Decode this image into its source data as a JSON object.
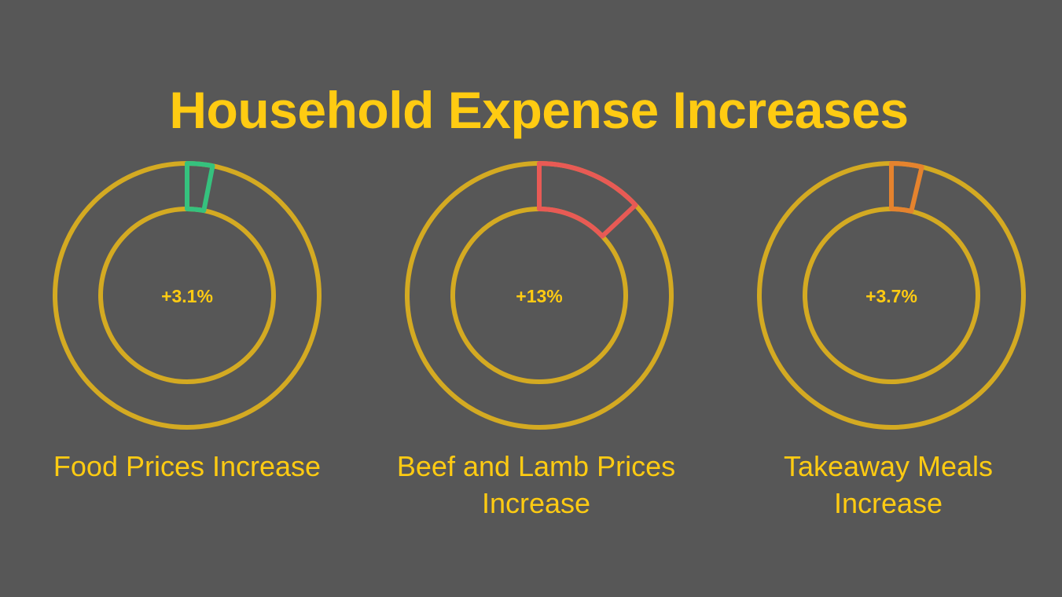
{
  "title": "Household Expense Increases",
  "colors": {
    "background": "#575757",
    "ring": "#D4AA22",
    "title": "#FFCB12"
  },
  "items": [
    {
      "label": "Food Prices Increase",
      "value_text": "+3.1%",
      "value": 3.1,
      "color": "#35C27E"
    },
    {
      "label": "Beef and Lamb Prices Increase",
      "value_text": "+13%",
      "value": 13,
      "color": "#E85A55"
    },
    {
      "label": "Takeaway Meals Increase",
      "value_text": "+3.7%",
      "value": 3.7,
      "color": "#E5832E"
    }
  ],
  "chart_data": {
    "type": "pie",
    "title": "Household Expense Increases",
    "categories": [
      "Food Prices Increase",
      "Beef and Lamb Prices Increase",
      "Takeaway Meals Increase"
    ],
    "values": [
      3.1,
      13,
      3.7
    ],
    "value_labels": [
      "+3.1%",
      "+13%",
      "+3.7%"
    ],
    "unit": "%",
    "series_colors": [
      "#35C27E",
      "#E85A55",
      "#E5832E"
    ],
    "style": "donut gauges, segment starts at 12 o'clock clockwise"
  }
}
